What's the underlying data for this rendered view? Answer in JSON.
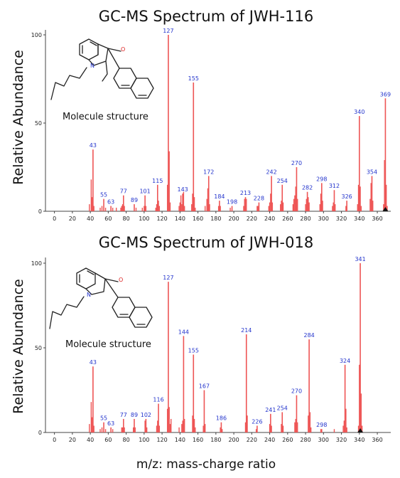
{
  "chart_data": [
    {
      "type": "bar",
      "title": "GC-MS Spectrum of JWH-116",
      "ylabel": "Relative Abundance",
      "xlabel": "m/z: mass-charge ratio",
      "structure_caption": "Molecule structure",
      "xlim": [
        -10,
        375
      ],
      "ylim": [
        0,
        100
      ],
      "x_ticks": [
        0,
        20,
        40,
        60,
        80,
        100,
        120,
        140,
        160,
        180,
        200,
        220,
        240,
        260,
        280,
        300,
        320,
        340,
        360
      ],
      "y_ticks": [
        0,
        50,
        100
      ],
      "marker_x": 369,
      "color": "#ee5555",
      "labeled_peaks": [
        {
          "mz": 43,
          "y": 35
        },
        {
          "mz": 55,
          "y": 7
        },
        {
          "mz": 63,
          "y": 3
        },
        {
          "mz": 77,
          "y": 9
        },
        {
          "mz": 89,
          "y": 4
        },
        {
          "mz": 101,
          "y": 9
        },
        {
          "mz": 115,
          "y": 15
        },
        {
          "mz": 127,
          "y": 100
        },
        {
          "mz": 143,
          "y": 10
        },
        {
          "mz": 155,
          "y": 73
        },
        {
          "mz": 172,
          "y": 20
        },
        {
          "mz": 184,
          "y": 6
        },
        {
          "mz": 198,
          "y": 3
        },
        {
          "mz": 213,
          "y": 8
        },
        {
          "mz": 228,
          "y": 5
        },
        {
          "mz": 242,
          "y": 20
        },
        {
          "mz": 254,
          "y": 15
        },
        {
          "mz": 270,
          "y": 25
        },
        {
          "mz": 282,
          "y": 11
        },
        {
          "mz": 298,
          "y": 16
        },
        {
          "mz": 312,
          "y": 12
        },
        {
          "mz": 326,
          "y": 6
        },
        {
          "mz": 340,
          "y": 54
        },
        {
          "mz": 354,
          "y": 20
        },
        {
          "mz": 369,
          "y": 64
        }
      ],
      "minor_peaks": [
        {
          "mz": 39,
          "y": 4
        },
        {
          "mz": 41,
          "y": 18
        },
        {
          "mz": 42,
          "y": 8
        },
        {
          "mz": 44,
          "y": 3
        },
        {
          "mz": 51,
          "y": 2
        },
        {
          "mz": 53,
          "y": 3
        },
        {
          "mz": 57,
          "y": 2
        },
        {
          "mz": 65,
          "y": 2
        },
        {
          "mz": 69,
          "y": 2
        },
        {
          "mz": 74,
          "y": 2
        },
        {
          "mz": 75,
          "y": 3
        },
        {
          "mz": 76,
          "y": 4
        },
        {
          "mz": 78,
          "y": 3
        },
        {
          "mz": 91,
          "y": 2
        },
        {
          "mz": 98,
          "y": 2
        },
        {
          "mz": 100,
          "y": 3
        },
        {
          "mz": 102,
          "y": 3
        },
        {
          "mz": 113,
          "y": 2
        },
        {
          "mz": 114,
          "y": 4
        },
        {
          "mz": 116,
          "y": 6
        },
        {
          "mz": 117,
          "y": 3
        },
        {
          "mz": 126,
          "y": 15
        },
        {
          "mz": 128,
          "y": 34
        },
        {
          "mz": 129,
          "y": 5
        },
        {
          "mz": 139,
          "y": 3
        },
        {
          "mz": 140,
          "y": 5
        },
        {
          "mz": 141,
          "y": 9
        },
        {
          "mz": 142,
          "y": 4
        },
        {
          "mz": 144,
          "y": 11
        },
        {
          "mz": 145,
          "y": 3
        },
        {
          "mz": 153,
          "y": 4
        },
        {
          "mz": 154,
          "y": 10
        },
        {
          "mz": 156,
          "y": 8
        },
        {
          "mz": 157,
          "y": 2
        },
        {
          "mz": 168,
          "y": 3
        },
        {
          "mz": 170,
          "y": 7
        },
        {
          "mz": 171,
          "y": 13
        },
        {
          "mz": 173,
          "y": 4
        },
        {
          "mz": 183,
          "y": 3
        },
        {
          "mz": 185,
          "y": 3
        },
        {
          "mz": 196,
          "y": 2
        },
        {
          "mz": 211,
          "y": 3
        },
        {
          "mz": 212,
          "y": 7
        },
        {
          "mz": 214,
          "y": 7
        },
        {
          "mz": 226,
          "y": 3
        },
        {
          "mz": 227,
          "y": 3
        },
        {
          "mz": 239,
          "y": 3
        },
        {
          "mz": 240,
          "y": 5
        },
        {
          "mz": 241,
          "y": 10
        },
        {
          "mz": 243,
          "y": 5
        },
        {
          "mz": 252,
          "y": 4
        },
        {
          "mz": 253,
          "y": 6
        },
        {
          "mz": 255,
          "y": 5
        },
        {
          "mz": 266,
          "y": 4
        },
        {
          "mz": 267,
          "y": 7
        },
        {
          "mz": 268,
          "y": 9
        },
        {
          "mz": 269,
          "y": 14
        },
        {
          "mz": 271,
          "y": 7
        },
        {
          "mz": 280,
          "y": 4
        },
        {
          "mz": 281,
          "y": 7
        },
        {
          "mz": 283,
          "y": 8
        },
        {
          "mz": 284,
          "y": 5
        },
        {
          "mz": 296,
          "y": 4
        },
        {
          "mz": 297,
          "y": 10
        },
        {
          "mz": 299,
          "y": 6
        },
        {
          "mz": 310,
          "y": 3
        },
        {
          "mz": 311,
          "y": 5
        },
        {
          "mz": 313,
          "y": 4
        },
        {
          "mz": 325,
          "y": 3
        },
        {
          "mz": 338,
          "y": 4
        },
        {
          "mz": 339,
          "y": 15
        },
        {
          "mz": 341,
          "y": 14
        },
        {
          "mz": 342,
          "y": 3
        },
        {
          "mz": 352,
          "y": 7
        },
        {
          "mz": 353,
          "y": 16
        },
        {
          "mz": 355,
          "y": 6
        },
        {
          "mz": 367,
          "y": 4
        },
        {
          "mz": 368,
          "y": 29
        },
        {
          "mz": 370,
          "y": 15
        },
        {
          "mz": 371,
          "y": 3
        }
      ]
    },
    {
      "type": "bar",
      "title": "GC-MS Spectrum of JWH-018",
      "ylabel": "Relative Abundance",
      "xlabel": "m/z: mass-charge ratio",
      "structure_caption": "Molecule structure",
      "xlim": [
        -10,
        375
      ],
      "ylim": [
        0,
        100
      ],
      "x_ticks": [
        0,
        20,
        40,
        60,
        80,
        100,
        120,
        140,
        160,
        180,
        200,
        220,
        240,
        260,
        280,
        300,
        320,
        340,
        360
      ],
      "y_ticks": [
        0,
        50,
        100
      ],
      "marker_x": 341,
      "color": "#ee5555",
      "labeled_peaks": [
        {
          "mz": 43,
          "y": 39
        },
        {
          "mz": 55,
          "y": 6
        },
        {
          "mz": 63,
          "y": 3
        },
        {
          "mz": 77,
          "y": 8
        },
        {
          "mz": 89,
          "y": 8
        },
        {
          "mz": 102,
          "y": 8
        },
        {
          "mz": 116,
          "y": 17
        },
        {
          "mz": 127,
          "y": 89
        },
        {
          "mz": 144,
          "y": 57
        },
        {
          "mz": 155,
          "y": 46
        },
        {
          "mz": 167,
          "y": 25
        },
        {
          "mz": 186,
          "y": 6
        },
        {
          "mz": 214,
          "y": 58
        },
        {
          "mz": 226,
          "y": 4
        },
        {
          "mz": 241,
          "y": 11
        },
        {
          "mz": 254,
          "y": 12
        },
        {
          "mz": 270,
          "y": 22
        },
        {
          "mz": 284,
          "y": 55
        },
        {
          "mz": 298,
          "y": 2
        },
        {
          "mz": 324,
          "y": 40
        },
        {
          "mz": 341,
          "y": 100
        }
      ],
      "minor_peaks": [
        {
          "mz": 39,
          "y": 5
        },
        {
          "mz": 41,
          "y": 18
        },
        {
          "mz": 42,
          "y": 9
        },
        {
          "mz": 44,
          "y": 4
        },
        {
          "mz": 51,
          "y": 2
        },
        {
          "mz": 53,
          "y": 3
        },
        {
          "mz": 57,
          "y": 2
        },
        {
          "mz": 65,
          "y": 2
        },
        {
          "mz": 75,
          "y": 3
        },
        {
          "mz": 76,
          "y": 3
        },
        {
          "mz": 78,
          "y": 3
        },
        {
          "mz": 88,
          "y": 3
        },
        {
          "mz": 90,
          "y": 3
        },
        {
          "mz": 101,
          "y": 7
        },
        {
          "mz": 103,
          "y": 3
        },
        {
          "mz": 114,
          "y": 4
        },
        {
          "mz": 115,
          "y": 7
        },
        {
          "mz": 117,
          "y": 4
        },
        {
          "mz": 126,
          "y": 14
        },
        {
          "mz": 128,
          "y": 15
        },
        {
          "mz": 129,
          "y": 5
        },
        {
          "mz": 130,
          "y": 8
        },
        {
          "mz": 139,
          "y": 3
        },
        {
          "mz": 142,
          "y": 5
        },
        {
          "mz": 143,
          "y": 7
        },
        {
          "mz": 145,
          "y": 8
        },
        {
          "mz": 154,
          "y": 10
        },
        {
          "mz": 156,
          "y": 8
        },
        {
          "mz": 157,
          "y": 3
        },
        {
          "mz": 166,
          "y": 4
        },
        {
          "mz": 168,
          "y": 5
        },
        {
          "mz": 185,
          "y": 3
        },
        {
          "mz": 187,
          "y": 2
        },
        {
          "mz": 213,
          "y": 6
        },
        {
          "mz": 215,
          "y": 10
        },
        {
          "mz": 225,
          "y": 2
        },
        {
          "mz": 240,
          "y": 5
        },
        {
          "mz": 242,
          "y": 4
        },
        {
          "mz": 253,
          "y": 5
        },
        {
          "mz": 255,
          "y": 4
        },
        {
          "mz": 268,
          "y": 6
        },
        {
          "mz": 269,
          "y": 8
        },
        {
          "mz": 271,
          "y": 6
        },
        {
          "mz": 283,
          "y": 10
        },
        {
          "mz": 285,
          "y": 12
        },
        {
          "mz": 286,
          "y": 3
        },
        {
          "mz": 297,
          "y": 2
        },
        {
          "mz": 312,
          "y": 2
        },
        {
          "mz": 322,
          "y": 4
        },
        {
          "mz": 323,
          "y": 7
        },
        {
          "mz": 325,
          "y": 14
        },
        {
          "mz": 326,
          "y": 3
        },
        {
          "mz": 339,
          "y": 4
        },
        {
          "mz": 340,
          "y": 40
        },
        {
          "mz": 342,
          "y": 23
        },
        {
          "mz": 343,
          "y": 4
        }
      ]
    }
  ]
}
